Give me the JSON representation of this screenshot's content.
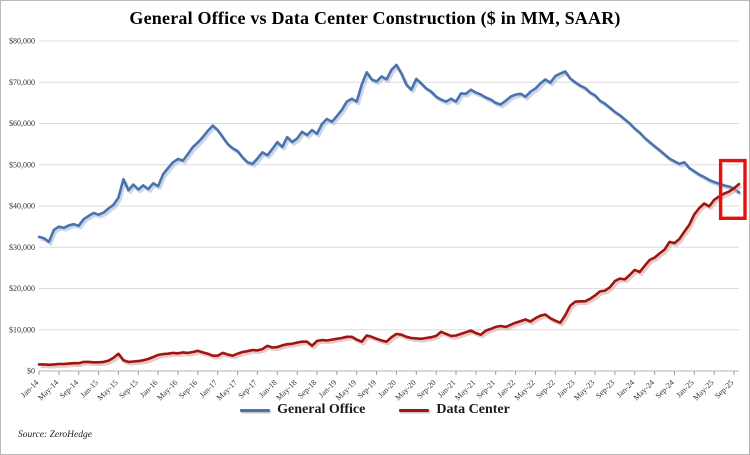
{
  "page": {
    "background": "#ffffff",
    "border_color": "#b9b9b9"
  },
  "chart_data": {
    "type": "line",
    "title": "General Office vs Data Center Construction ($ in MM, SAAR)",
    "x_unit": "month",
    "x_start": "Jan-14",
    "x_end": "Oct-25",
    "x_tick_every": 4,
    "x_tick_labels": [
      "Jan-14",
      "May-14",
      "Sep-14",
      "Jan-15",
      "May-15",
      "Sep-15",
      "Jan-16",
      "May-16",
      "Sep-16",
      "Jan-17",
      "May-17",
      "Sep-17",
      "Jan-18",
      "May-18",
      "Sep-18",
      "Jan-19",
      "May-19",
      "Sep-19",
      "Jan-20",
      "May-20",
      "Sep-20",
      "Jan-21",
      "May-21",
      "Sep-21",
      "Jan-22",
      "May-22",
      "Sep-22",
      "Jan-23",
      "May-23",
      "Sep-23",
      "Jan-24",
      "May-24",
      "Sep-24",
      "Jan-25",
      "May-25",
      "Sep-25"
    ],
    "y_axis": {
      "min": 0,
      "max": 80000,
      "step": 10000,
      "tick_labels": [
        "$0",
        "$10,000",
        "$20,000",
        "$30,000",
        "$40,000",
        "$50,000",
        "$60,000",
        "$70,000",
        "$80,000"
      ]
    },
    "grid": "horizontal",
    "legend_position": "bottom-center",
    "series": [
      {
        "name": "General Office",
        "color": "#4a72ac",
        "shadow_color": "#a9bcd8",
        "values": [
          32500,
          32200,
          31300,
          34200,
          35000,
          34700,
          35300,
          35600,
          35200,
          36800,
          37600,
          38300,
          37900,
          38400,
          39400,
          40300,
          42000,
          46500,
          43800,
          45200,
          44000,
          45000,
          44100,
          45500,
          44800,
          47700,
          49200,
          50600,
          51400,
          51000,
          52600,
          54300,
          55400,
          56700,
          58200,
          59500,
          58400,
          56700,
          55000,
          54000,
          53300,
          51800,
          50600,
          50200,
          51500,
          53000,
          52300,
          53800,
          55500,
          54300,
          56700,
          55500,
          56400,
          58000,
          57200,
          58400,
          57500,
          59900,
          61100,
          60400,
          61800,
          63300,
          65300,
          66000,
          65300,
          69400,
          72400,
          70700,
          70200,
          71400,
          70700,
          73000,
          74200,
          72100,
          69400,
          68200,
          70800,
          69700,
          68500,
          67700,
          66500,
          65800,
          65300,
          66000,
          65300,
          67300,
          67200,
          68200,
          67500,
          67000,
          66300,
          65800,
          65000,
          64600,
          65500,
          66500,
          67000,
          67200,
          66500,
          67700,
          68500,
          69700,
          70700,
          69900,
          71500,
          72100,
          72600,
          70900,
          70000,
          69200,
          68600,
          67500,
          66800,
          65500,
          64800,
          63800,
          62800,
          62000,
          61000,
          60000,
          58800,
          57800,
          56500,
          55500,
          54500,
          53500,
          52500,
          51500,
          50800,
          50200,
          50600,
          49200,
          48400,
          47600,
          47000,
          46300,
          45800,
          45400,
          45000,
          44700,
          44200,
          43300
        ]
      },
      {
        "name": "Data Center",
        "color": "#a0150f",
        "shadow_color": "#d3a9a5",
        "values": [
          1600,
          1600,
          1500,
          1600,
          1700,
          1700,
          1800,
          1900,
          1900,
          2200,
          2200,
          2100,
          2100,
          2200,
          2500,
          3200,
          4200,
          2600,
          2200,
          2300,
          2400,
          2600,
          2900,
          3400,
          3900,
          4100,
          4200,
          4400,
          4300,
          4500,
          4400,
          4600,
          4900,
          4500,
          4200,
          3700,
          3700,
          4400,
          4000,
          3700,
          4200,
          4600,
          4800,
          5100,
          5000,
          5300,
          6100,
          5700,
          5800,
          6200,
          6500,
          6600,
          6900,
          7100,
          7100,
          6100,
          7300,
          7500,
          7400,
          7600,
          7800,
          8000,
          8300,
          8300,
          7600,
          7100,
          8600,
          8300,
          7800,
          7400,
          7100,
          8200,
          9000,
          8800,
          8300,
          8000,
          7900,
          7800,
          8000,
          8200,
          8500,
          9500,
          9000,
          8500,
          8600,
          9000,
          9400,
          9800,
          9200,
          8800,
          9800,
          10200,
          10700,
          10900,
          10700,
          11200,
          11700,
          12100,
          12500,
          12000,
          12800,
          13400,
          13700,
          12800,
          12200,
          11700,
          13500,
          15800,
          16800,
          16900,
          16900,
          17500,
          18300,
          19300,
          19500,
          20300,
          21800,
          22400,
          22200,
          23300,
          24500,
          24000,
          25500,
          26900,
          27500,
          28500,
          29400,
          31300,
          31000,
          32000,
          33800,
          35500,
          38000,
          39500,
          40600,
          39900,
          41500,
          42300,
          43000,
          43500,
          44300,
          45300
        ]
      }
    ],
    "annotation": {
      "shape": "rectangle",
      "color": "#e8100c",
      "from_month": "Aug-25",
      "to_month": "Oct-25",
      "value_top": 51000,
      "value_bottom": 37000
    },
    "source_note": "Source: ZeroHedge"
  }
}
